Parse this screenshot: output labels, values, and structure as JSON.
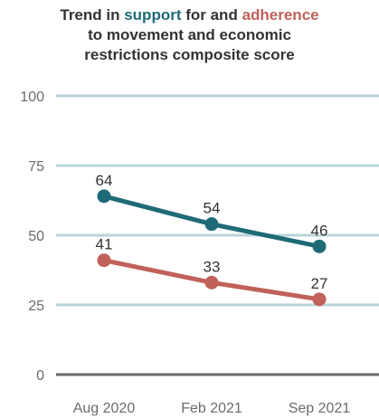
{
  "chart_data": {
    "type": "line",
    "title_parts": {
      "pre": "Trend in ",
      "support": "support",
      "mid": " for and ",
      "adherence": "adherence",
      "line2": "to movement and economic",
      "line3": "restrictions composite score"
    },
    "categories": [
      "Aug 2020",
      "Feb 2021",
      "Sep 2021"
    ],
    "series": [
      {
        "name": "support",
        "color": "#1e6b77",
        "values": [
          64,
          54,
          46
        ]
      },
      {
        "name": "adherence",
        "color": "#c0625a",
        "values": [
          41,
          33,
          27
        ]
      }
    ],
    "yticks": [
      0,
      25,
      50,
      75,
      100
    ],
    "ylim": [
      0,
      100
    ],
    "grid": true,
    "grid_color": "#b9d4d8",
    "baseline_color": "#6b6b6b"
  }
}
